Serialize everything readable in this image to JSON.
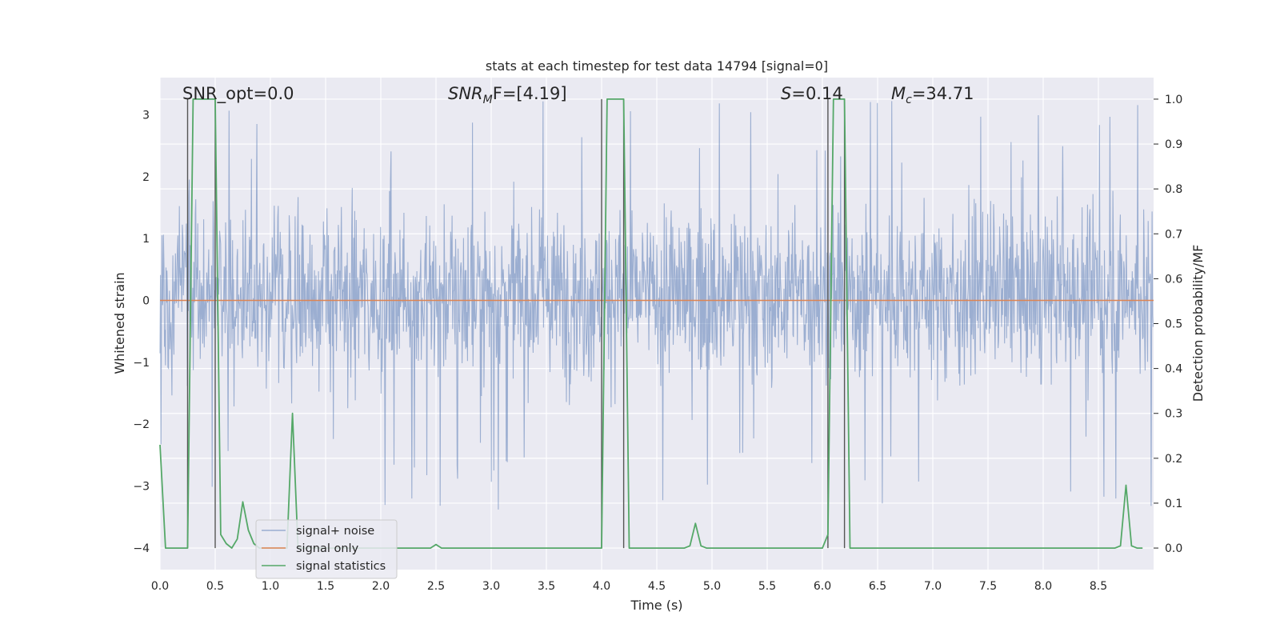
{
  "chart_data": {
    "type": "line",
    "title": "stats at each timestep for test data 14794 [signal=0]",
    "xlabel": "Time (s)",
    "ylabel_left": "Whitened strain",
    "ylabel_right": "Detection probability/MF",
    "xlim": [
      0,
      9.0
    ],
    "ylim_left": [
      -4.35,
      3.6
    ],
    "ylim_right": [
      -0.048,
      1.048
    ],
    "x_ticks": [
      0.0,
      0.5,
      1.0,
      1.5,
      2.0,
      2.5,
      3.0,
      3.5,
      4.0,
      4.5,
      5.0,
      5.5,
      6.0,
      6.5,
      7.0,
      7.5,
      8.0,
      8.5
    ],
    "x_tick_labels": [
      "0.0",
      "0.5",
      "1.0",
      "1.5",
      "2.0",
      "2.5",
      "3.0",
      "3.5",
      "4.0",
      "4.5",
      "5.0",
      "5.5",
      "6.0",
      "6.5",
      "7.0",
      "7.5",
      "8.0",
      "8.5"
    ],
    "y_left_ticks": [
      -4,
      -3,
      -2,
      -1,
      0,
      1,
      2,
      3
    ],
    "y_left_tick_labels": [
      "−4",
      "−3",
      "−2",
      "−1",
      "0",
      "1",
      "2",
      "3"
    ],
    "y_right_ticks": [
      0.0,
      0.1,
      0.2,
      0.3,
      0.4,
      0.5,
      0.6,
      0.7,
      0.8,
      0.9,
      1.0
    ],
    "y_right_tick_labels": [
      "0.0",
      "0.1",
      "0.2",
      "0.3",
      "0.4",
      "0.5",
      "0.6",
      "0.7",
      "0.8",
      "0.9",
      "1.0"
    ],
    "grid": true,
    "legend_position": "lower-left",
    "series": [
      {
        "name": "signal+ noise",
        "axis": "left",
        "color": "#4c72b0",
        "opacity": 0.5,
        "description": "dense whitened noise, approx range -3.6 to 3.2",
        "envelope": {
          "typical_low": -1.9,
          "typical_high": 2.1,
          "sample_rate_hz": 2048,
          "duration_s": 9.0
        }
      },
      {
        "name": "signal only",
        "axis": "left",
        "color": "#dd8452",
        "x": [
          0.0,
          9.0
        ],
        "y": [
          0.0,
          0.0
        ]
      },
      {
        "name": "signal statistics",
        "axis": "right",
        "color": "#55a868",
        "x": [
          0.0,
          0.05,
          0.1,
          0.15,
          0.2,
          0.25,
          0.3,
          0.35,
          0.4,
          0.45,
          0.5,
          0.55,
          0.6,
          0.65,
          0.7,
          0.75,
          0.8,
          0.85,
          0.9,
          0.95,
          1.0,
          1.05,
          1.1,
          1.15,
          1.2,
          1.25,
          1.3,
          1.35,
          1.4,
          2.4,
          2.45,
          2.5,
          2.55,
          2.6,
          3.9,
          3.95,
          4.0,
          4.05,
          4.1,
          4.15,
          4.2,
          4.25,
          4.3,
          4.75,
          4.8,
          4.85,
          4.9,
          4.95,
          5.0,
          6.0,
          6.05,
          6.1,
          6.15,
          6.2,
          6.25,
          6.3,
          8.6,
          8.65,
          8.7,
          8.75,
          8.8,
          8.85,
          8.9
        ],
        "y": [
          0.23,
          0.0,
          0.0,
          0.0,
          0.0,
          0.0,
          1.0,
          1.0,
          1.0,
          1.0,
          1.0,
          0.03,
          0.01,
          0.0,
          0.02,
          0.103,
          0.04,
          0.01,
          0.0,
          0.0,
          0.0,
          0.0,
          0.0,
          0.0,
          0.3,
          0.0,
          0.0,
          0.0,
          0.0,
          0.0,
          0.0,
          0.008,
          0.0,
          0.0,
          0.0,
          0.0,
          0.0,
          1.0,
          1.0,
          1.0,
          1.0,
          0.0,
          0.0,
          0.0,
          0.005,
          0.055,
          0.005,
          0.0,
          0.0,
          0.0,
          0.03,
          1.0,
          1.0,
          1.0,
          0.0,
          0.0,
          0.0,
          0.0,
          0.005,
          0.14,
          0.005,
          0.0,
          0.0
        ]
      }
    ],
    "vlines": [
      0.25,
      0.5,
      4.0,
      4.2,
      6.05,
      6.2
    ],
    "annotations": {
      "snr_opt": "SNR_opt=0.0",
      "snr_mf_prefix": "SNR",
      "snr_mf_sub": "M",
      "snr_mf_suffix": "F=[4.19]",
      "s_label": "S",
      "s_value": "=0.14",
      "mc_label": "M",
      "mc_sub": "c",
      "mc_value": "=34.71"
    }
  }
}
